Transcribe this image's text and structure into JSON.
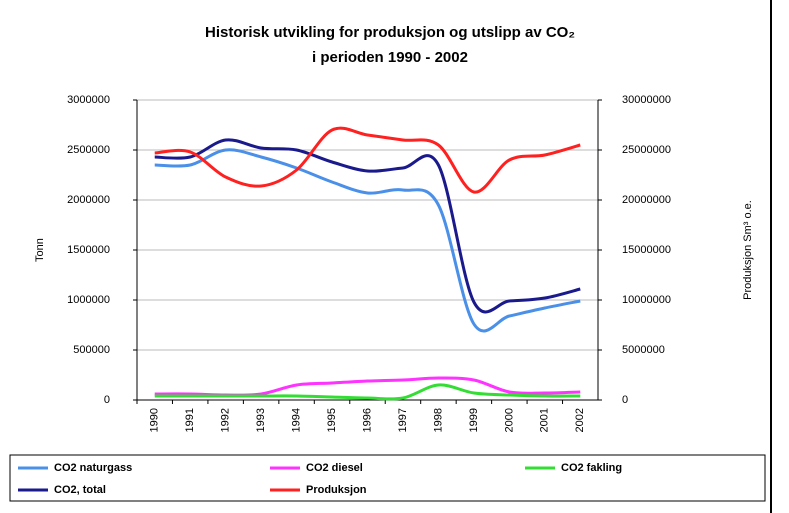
{
  "chart_data": {
    "type": "line",
    "title": [
      "Historisk utvikling for produksjon og utslipp av CO₂",
      "i perioden 1990 - 2002"
    ],
    "ylabel": "Tonn",
    "y2label": "Produksjon Sm³ o.e.",
    "categories": [
      "1990",
      "1991",
      "1992",
      "1993",
      "1994",
      "1995",
      "1996",
      "1997",
      "1998",
      "1999",
      "2000",
      "2001",
      "2002"
    ],
    "series": [
      {
        "name": "CO2 naturgass",
        "color": "#4a90e8",
        "values": [
          2350000,
          2350000,
          2500000,
          2430000,
          2320000,
          2180000,
          2070000,
          2100000,
          1950000,
          760000,
          840000,
          920000,
          990000
        ]
      },
      {
        "name": "CO2 diesel",
        "color": "#ff33ff",
        "values": [
          60000,
          60000,
          50000,
          60000,
          150000,
          170000,
          190000,
          200000,
          220000,
          200000,
          80000,
          70000,
          80000
        ]
      },
      {
        "name": "CO2 fakling",
        "color": "#33dd33",
        "values": [
          40000,
          40000,
          40000,
          40000,
          40000,
          30000,
          20000,
          20000,
          150000,
          70000,
          50000,
          40000,
          40000
        ]
      },
      {
        "name": "CO2, total",
        "color": "#1a1a8c",
        "values": [
          2430000,
          2430000,
          2600000,
          2520000,
          2500000,
          2380000,
          2290000,
          2320000,
          2350000,
          980000,
          990000,
          1020000,
          1110000
        ]
      },
      {
        "name": "Produksjon",
        "color": "#ff2020",
        "axis": "y2",
        "values": [
          24700000,
          24800000,
          22300000,
          21400000,
          23000000,
          27000000,
          26500000,
          26000000,
          25500000,
          20800000,
          24000000,
          24500000,
          25500000
        ]
      }
    ],
    "ylim": [
      0,
      3000000
    ],
    "yticks": [
      0,
      500000,
      1000000,
      1500000,
      2000000,
      2500000,
      3000000
    ],
    "y2lim": [
      0,
      30000000
    ],
    "y2ticks": [
      0,
      5000000,
      10000000,
      15000000,
      20000000,
      25000000,
      30000000
    ],
    "grid": true,
    "legend": "bottom"
  }
}
